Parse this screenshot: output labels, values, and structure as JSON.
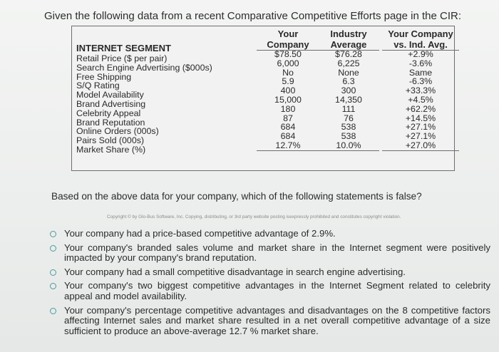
{
  "intro": "Given the following data from a recent Comparative Competitive Efforts page in the CIR:",
  "table": {
    "segment_header": "INTERNET SEGMENT",
    "col_company_header": [
      "Your",
      "Company"
    ],
    "col_industry_header": [
      "Industry",
      "Average"
    ],
    "col_vs_header": [
      "Your Company",
      "vs. Ind. Avg."
    ],
    "rows": [
      {
        "label": "Retail Price ($ per pair)",
        "company": "$78.50",
        "industry": "$76.28",
        "vs": "+2.9%"
      },
      {
        "label": "Search Engine Advertising ($000s)",
        "company": "6,000",
        "industry": "6,225",
        "vs": "-3.6%"
      },
      {
        "label": "Free Shipping",
        "company": "No",
        "industry": "None",
        "vs": "Same"
      },
      {
        "label": "S/Q Rating",
        "company": "5.9",
        "industry": "6.3",
        "vs": "-6.3%"
      },
      {
        "label": "Model Availability",
        "company": "400",
        "industry": "300",
        "vs": "+33.3%"
      },
      {
        "label": "Brand Advertising",
        "company": "15,000",
        "industry": "14,350",
        "vs": "+4.5%"
      },
      {
        "label": "Celebrity Appeal",
        "company": "180",
        "industry": "111",
        "vs": "+62.2%"
      },
      {
        "label": "Brand Reputation",
        "company": "87",
        "industry": "76",
        "vs": "+14.5%"
      },
      {
        "label": "Online Orders (000s)",
        "company": "684",
        "industry": "538",
        "vs": "+27.1%"
      },
      {
        "label": "Pairs Sold (000s)",
        "company": "684",
        "industry": "538",
        "vs": "+27.1%"
      },
      {
        "label": "Market Share (%)",
        "company": "12.7%",
        "industry": "10.0%",
        "vs": "+27.0%"
      }
    ]
  },
  "question": "Based on the above data for your company, which of the following statements is false?",
  "copyright": "Copyright © by Glo-Bus Software, Inc. Copying, distributing, or 3rd party website posting isexpressly prohibited and constitutes copyright violation.",
  "options": [
    "Your company had a price-based competitive advantage of 2.9%.",
    "Your company's branded sales volume and market share in the Internet segment were positively impacted by your company's brand reputation.",
    "Your company had a small competitive disadvantage in search engine advertising.",
    "Your company's two biggest competitive advantages in the Internet Segment related to celebrity appeal and model availability.",
    "Your company's percentage competitive advantages and disadvantages on the 8 competitive factors affecting Internet sales and market share resulted in a net overall competitive advantage of a size sufficient to produce an above-average 12.7 % market share."
  ]
}
